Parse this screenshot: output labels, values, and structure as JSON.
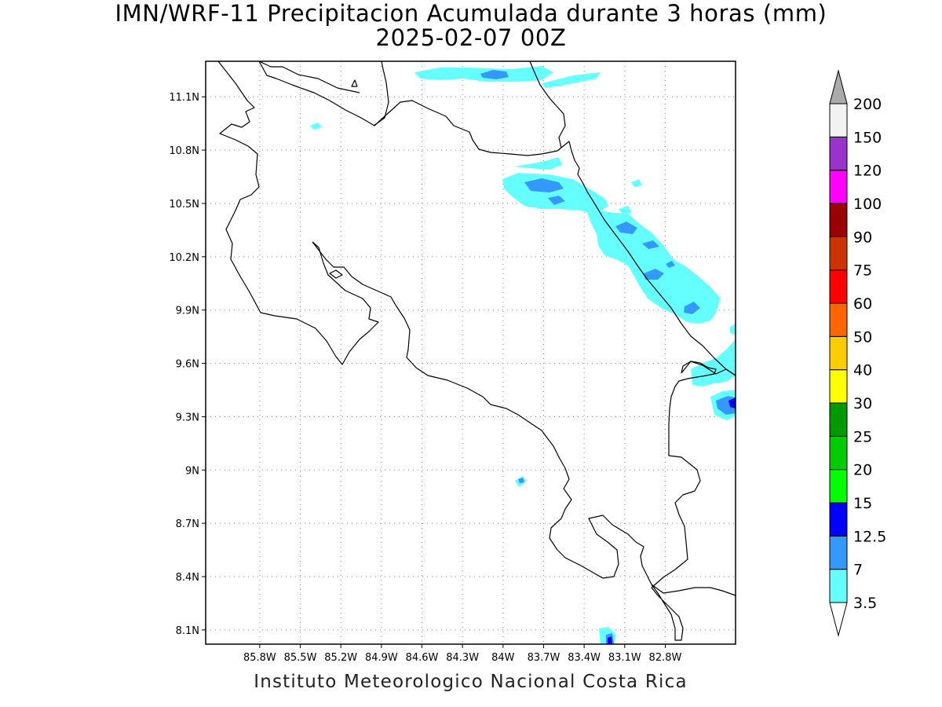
{
  "header": {
    "title": "IMN/WRF-11 Precipitacion Acumulada durante 3 horas (mm)",
    "subtitle": "2025-02-07 00Z"
  },
  "footer": {
    "credit": "Instituto Meteorologico Nacional Costa Rica"
  },
  "map": {
    "lon_range": [
      -86.2,
      -82.28
    ],
    "lat_range": [
      8.02,
      11.3
    ],
    "lat_ticks": [
      "8.1N",
      "8.4N",
      "8.7N",
      "9N",
      "9.3N",
      "9.6N",
      "9.9N",
      "10.2N",
      "10.5N",
      "10.8N",
      "11.1N"
    ],
    "lon_ticks": [
      "85.8W",
      "85.5W",
      "85.2W",
      "84.9W",
      "84.6W",
      "84.3W",
      "84W",
      "83.7W",
      "83.4W",
      "83.1W",
      "82.8W"
    ]
  },
  "colorbar": {
    "labels": [
      "3.5",
      "7",
      "12.5",
      "15",
      "20",
      "25",
      "30",
      "40",
      "50",
      "60",
      "75",
      "90",
      "100",
      "120",
      "150",
      "200"
    ],
    "colors": [
      "#ffffff",
      "#66ffff",
      "#3399ff",
      "#0000ff",
      "#00ff00",
      "#00cc00",
      "#009900",
      "#ffff00",
      "#ffcc00",
      "#ff6600",
      "#ff0000",
      "#cc3300",
      "#990000",
      "#ff00ff",
      "#9933cc",
      "#f2f2f2",
      "#aaaaaa"
    ]
  }
}
